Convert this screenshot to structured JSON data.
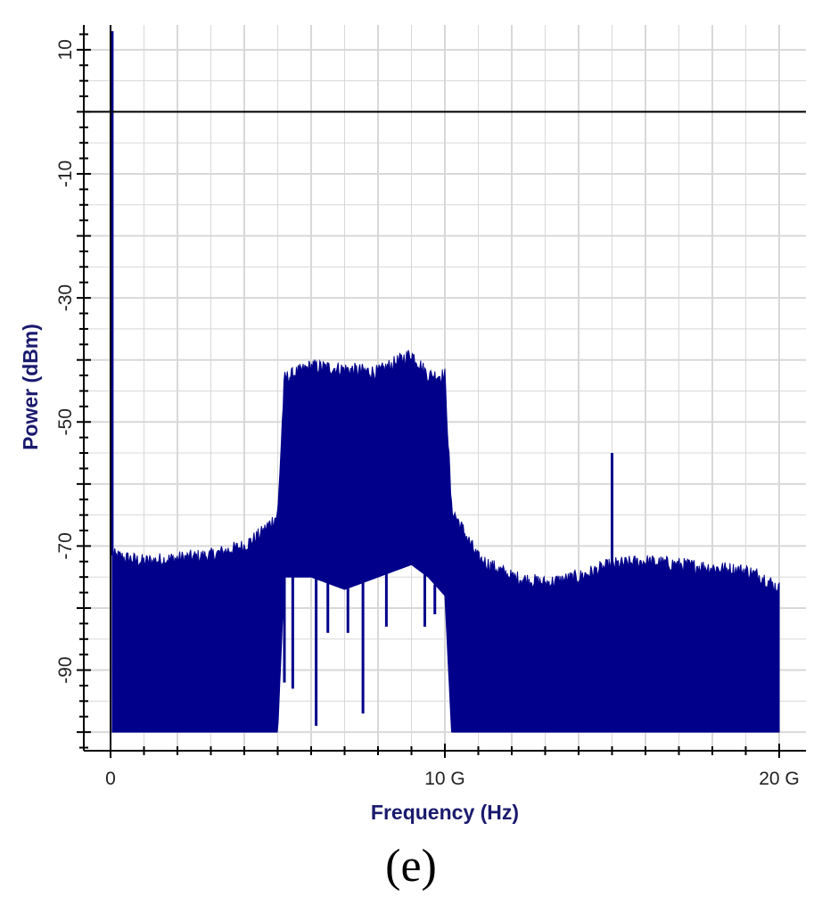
{
  "panel_label": "(e)",
  "colors": {
    "trace": "#00008b",
    "grid": "#d8d8d8",
    "axis_title": "#1a1a6e",
    "reference_line": "#000000"
  },
  "chart_data": {
    "type": "line",
    "xlabel": "Frequency (Hz)",
    "ylabel": "Power (dBm)",
    "xlim": [
      -0.8,
      20.8
    ],
    "ylim": [
      -103,
      14
    ],
    "x_ticks": [
      0,
      10,
      20
    ],
    "x_tick_labels": [
      "0",
      "10 G",
      "20 G"
    ],
    "y_ticks": [
      10,
      -10,
      -30,
      -50,
      -70,
      -90
    ],
    "y_tick_labels": [
      "10",
      "-10",
      "-30",
      "-50",
      "-70",
      "-90"
    ],
    "grid": true,
    "reference_line": {
      "axis": "y",
      "value": 0
    },
    "x_unit_note": "x values in GHz",
    "series": [
      {
        "type": "band",
        "x": [
          0.05,
          1.0,
          2.0,
          3.0,
          4.0,
          4.5,
          5.0,
          5.2,
          6.0,
          7.0,
          8.0,
          9.0,
          9.5,
          10.0,
          10.2,
          11.0,
          12.0,
          13.0,
          14.0,
          15.0,
          16.0,
          17.0,
          18.0,
          19.0,
          19.5,
          20.0
        ],
        "upper": [
          -71.5,
          -72.5,
          -72,
          -71.5,
          -70,
          -68,
          -65,
          -43,
          -41,
          -41.5,
          -42,
          -39,
          -42.5,
          -42.5,
          -64,
          -72,
          -75,
          -76,
          -75,
          -73,
          -72.5,
          -73,
          -73.5,
          -74,
          -75,
          -77
        ],
        "lower": [
          -100,
          -100,
          -100,
          -100,
          -100,
          -100,
          -100,
          -75,
          -75,
          -77,
          -75,
          -73,
          -75,
          -78,
          -100,
          -100,
          -100,
          -100,
          -100,
          -100,
          -100,
          -100,
          -100,
          -100,
          -100,
          -100
        ]
      },
      {
        "type": "dips",
        "x": [
          5.2,
          5.45,
          6.15,
          6.5,
          7.1,
          7.55,
          8.25,
          9.4,
          9.7
        ],
        "y": [
          -92,
          -93,
          -99,
          -84,
          -84,
          -97,
          -83,
          -83,
          -81
        ]
      },
      {
        "type": "spikes",
        "x": [
          0.05,
          15.0
        ],
        "y": [
          13,
          -55
        ]
      }
    ]
  }
}
